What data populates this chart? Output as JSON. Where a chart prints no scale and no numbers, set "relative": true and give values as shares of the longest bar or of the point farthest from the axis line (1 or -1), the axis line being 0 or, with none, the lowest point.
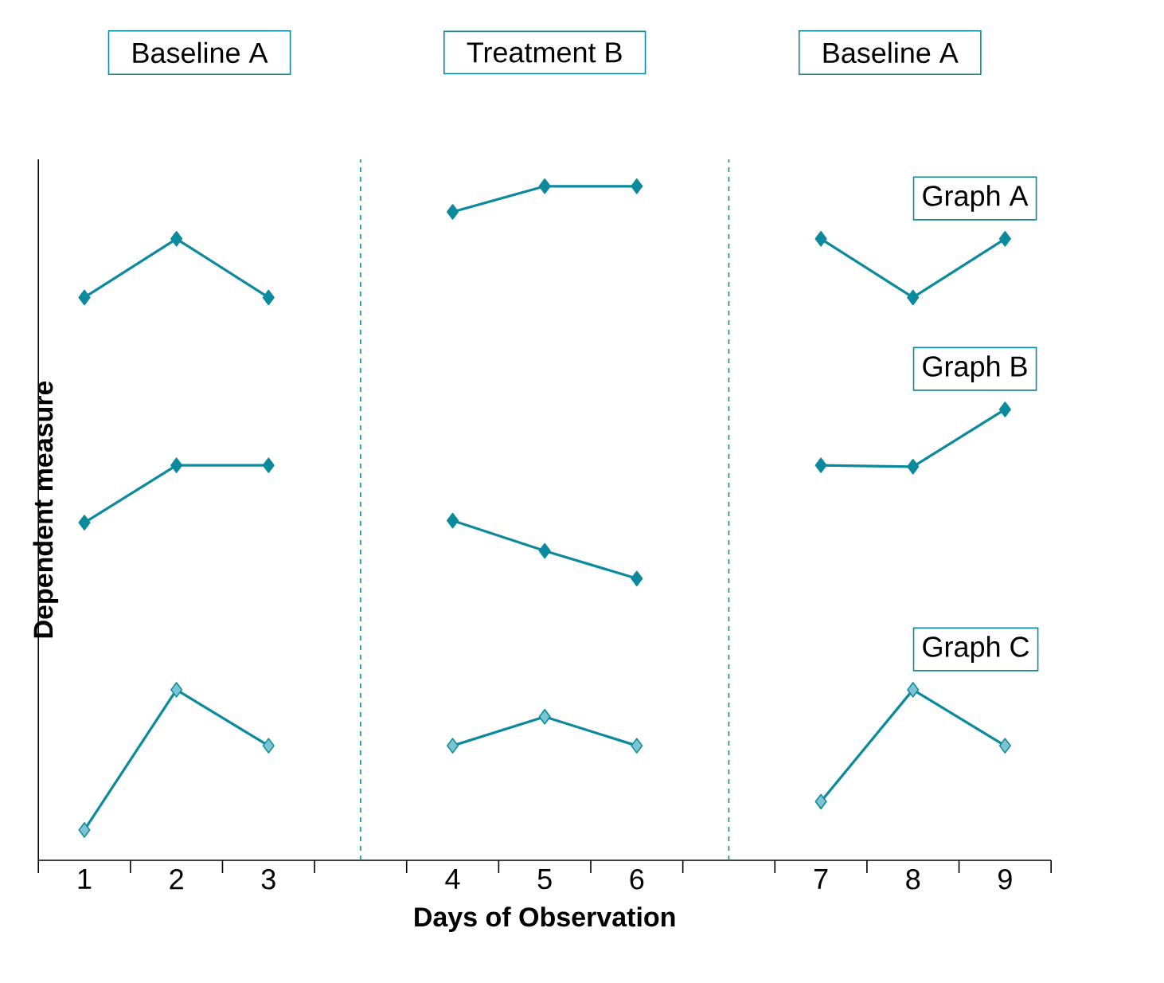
{
  "chart_data": {
    "type": "line",
    "relative": true,
    "xlabel": "Days of Observation",
    "ylabel": "Dependent measure",
    "annotations": [
      "Baseline A",
      "Treatment B",
      "Baseline A"
    ],
    "categories": [
      "1",
      "2",
      "3",
      null,
      "4",
      "5",
      "6",
      null,
      "7",
      "8",
      "9"
    ],
    "marker": "diamond",
    "line_style": "solid",
    "legend": false,
    "series": [
      {
        "name": "Graph A",
        "color": "#0b8a9e",
        "values": [
          0.835,
          0.922,
          0.835,
          null,
          0.962,
          1,
          1,
          null,
          0.922,
          0.835,
          0.922
        ]
      },
      {
        "name": "Graph B",
        "color": "#0b8a9e",
        "values": [
          0.501,
          0.586,
          0.586,
          null,
          0.504,
          0.459,
          0.418,
          null,
          0.586,
          0.584,
          0.669
        ]
      },
      {
        "name": "Graph C",
        "color": "#7cc4d2",
        "values": [
          0.045,
          0.253,
          0.17,
          null,
          0.17,
          0.213,
          0.17,
          null,
          0.087,
          0.253,
          0.17
        ]
      }
    ]
  }
}
